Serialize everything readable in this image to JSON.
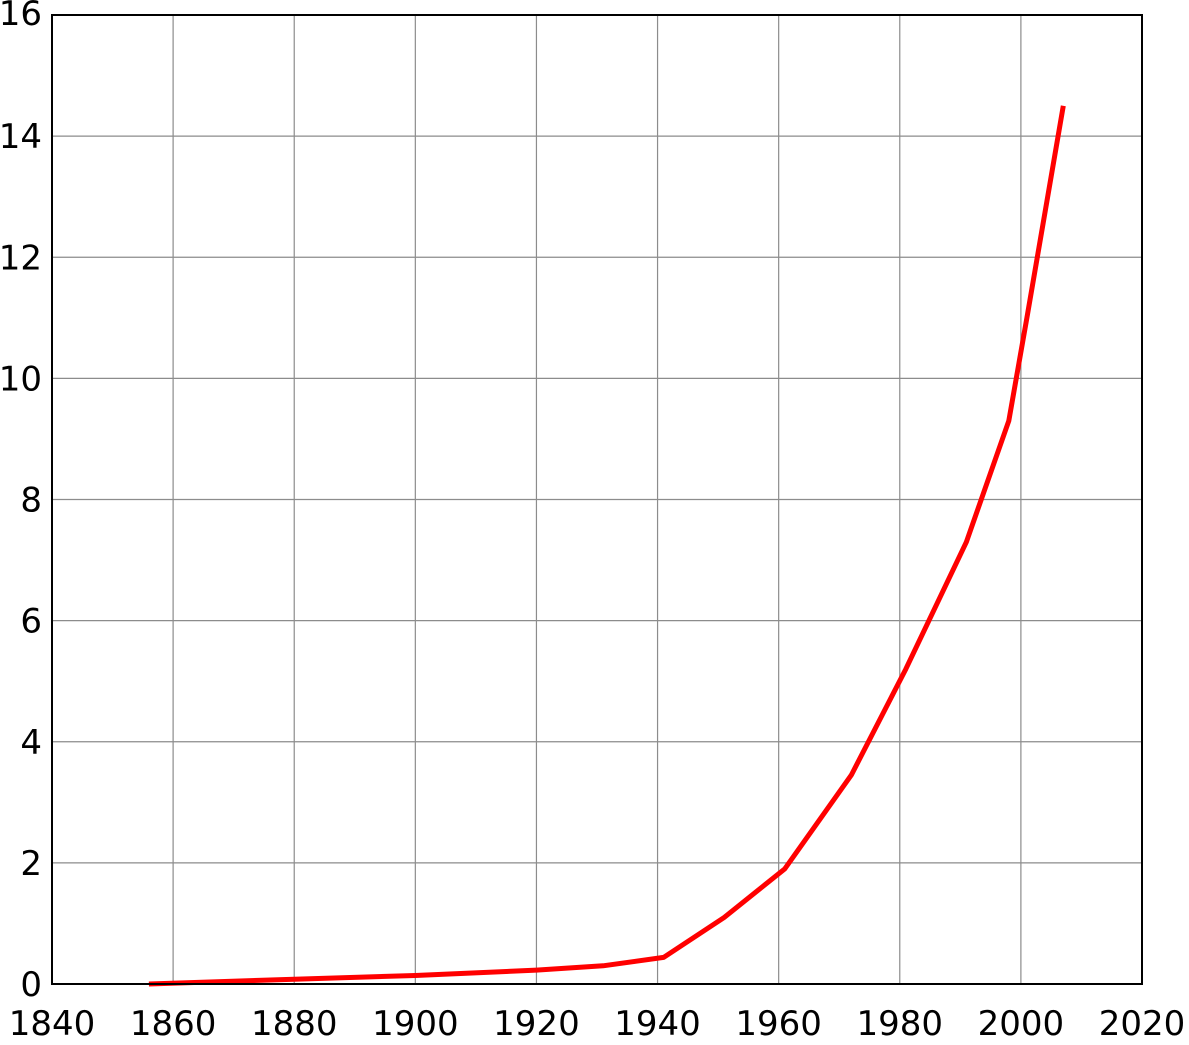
{
  "chart_data": {
    "type": "line",
    "title": "",
    "xlabel": "",
    "ylabel": "",
    "xlim": [
      1840,
      2020
    ],
    "ylim": [
      0,
      16
    ],
    "x_ticks": [
      "1840",
      "1860",
      "1880",
      "1900",
      "1920",
      "1940",
      "1960",
      "1980",
      "2000",
      "2020"
    ],
    "y_ticks": [
      "0",
      "2",
      "4",
      "6",
      "8",
      "10",
      "12",
      "14",
      "16"
    ],
    "grid": true,
    "legend": "none",
    "series": [
      {
        "color": "#ff0000",
        "points": [
          {
            "x": 1856,
            "y": 0.0
          },
          {
            "x": 1880,
            "y": 0.08
          },
          {
            "x": 1900,
            "y": 0.14
          },
          {
            "x": 1920,
            "y": 0.23
          },
          {
            "x": 1931,
            "y": 0.3
          },
          {
            "x": 1941,
            "y": 0.44
          },
          {
            "x": 1951,
            "y": 1.1
          },
          {
            "x": 1961,
            "y": 1.9
          },
          {
            "x": 1972,
            "y": 3.45
          },
          {
            "x": 1981,
            "y": 5.2
          },
          {
            "x": 1991,
            "y": 7.3
          },
          {
            "x": 1998,
            "y": 9.3
          },
          {
            "x": 2001,
            "y": 11.0
          },
          {
            "x": 2007,
            "y": 14.5
          }
        ]
      }
    ]
  }
}
